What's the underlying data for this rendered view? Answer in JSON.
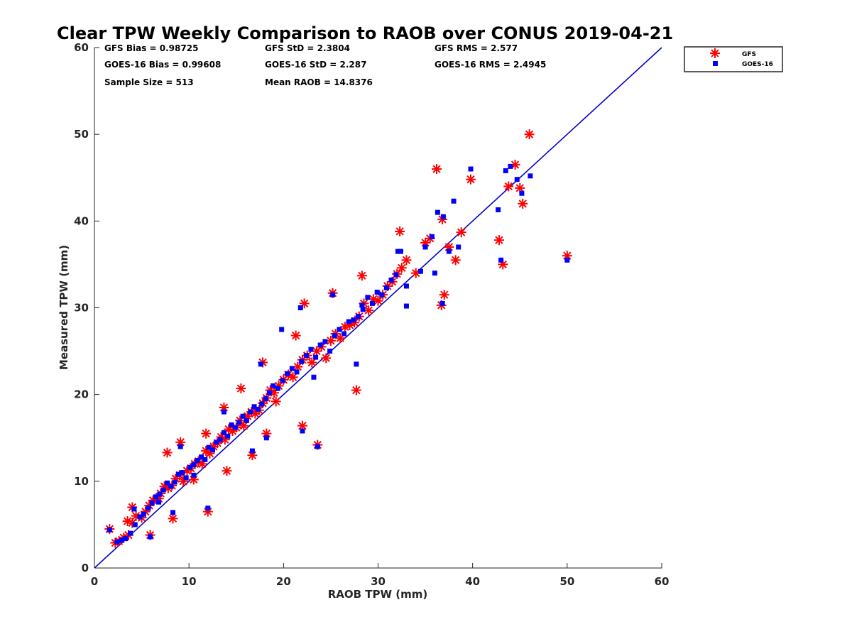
{
  "chart_data": {
    "type": "scatter",
    "title": "Clear TPW Weekly Comparison to RAOB over CONUS 2019-04-21",
    "xlabel": "RAOB TPW (mm)",
    "ylabel": "Measured TPW (mm)",
    "xlim": [
      0,
      60
    ],
    "ylim": [
      0,
      60
    ],
    "xticks": [
      0,
      10,
      20,
      30,
      40,
      50,
      60
    ],
    "yticks": [
      0,
      10,
      20,
      30,
      40,
      50,
      60
    ],
    "grid": false,
    "legend_position": "top-right",
    "one_to_one_line": {
      "x": [
        0,
        60
      ],
      "y": [
        0,
        60
      ],
      "color": "#0000cc"
    },
    "stats": {
      "gfs_bias": "GFS Bias = 0.98725",
      "goes_bias": "GOES-16 Bias = 0.99608",
      "sample_size": "Sample Size = 513",
      "gfs_std": "GFS StD = 2.3804",
      "goes_std": "GOES-16 StD = 2.287",
      "mean_raob": "Mean RAOB = 14.8376",
      "gfs_rms": "GFS RMS = 2.577",
      "goes_rms": "GOES-16 RMS = 2.4945"
    },
    "series": [
      {
        "name": "GFS",
        "color": "#ff0000",
        "marker": "asterisk",
        "x": [
          1.6,
          2.2,
          2.6,
          3.1,
          3.6,
          4.0,
          4.4,
          5.0,
          5.4,
          5.8,
          6.2,
          6.6,
          7.0,
          7.4,
          7.8,
          8.2,
          8.6,
          9.0,
          9.4,
          9.8,
          10.2,
          10.6,
          11.0,
          11.4,
          11.8,
          12.2,
          12.6,
          13.0,
          13.4,
          13.8,
          14.2,
          14.6,
          15.0,
          15.4,
          15.8,
          16.2,
          16.6,
          17.0,
          17.4,
          17.8,
          18.2,
          18.6,
          19.0,
          19.5,
          20.0,
          20.5,
          21.0,
          21.5,
          22.0,
          22.5,
          23.0,
          23.5,
          24.0,
          24.5,
          25.0,
          25.5,
          26.0,
          26.5,
          27.0,
          27.5,
          28.0,
          28.5,
          29.0,
          29.5,
          30.0,
          30.5,
          31.0,
          31.5,
          32.0,
          32.5,
          33.0,
          34.0,
          35.0,
          35.5,
          36.2,
          36.8,
          37.0,
          37.5,
          38.2,
          38.8,
          39.8,
          42.8,
          43.2,
          43.8,
          44.5,
          45.0,
          45.3,
          46.0,
          50.0,
          12.0,
          8.3,
          5.9,
          18.2,
          22.0,
          23.6,
          16.7,
          6.8,
          4.0,
          3.5,
          9.1,
          10.5,
          7.7,
          13.7,
          15.5,
          11.8,
          14.0,
          17.8,
          19.2,
          21.3,
          25.2,
          28.3,
          32.3,
          36.7,
          27.7,
          22.2
        ],
        "y": [
          4.5,
          2.9,
          3.1,
          3.5,
          3.8,
          5.2,
          6.0,
          5.8,
          6.5,
          7.2,
          7.8,
          8.0,
          8.6,
          9.4,
          9.2,
          9.5,
          10.3,
          10.7,
          10.0,
          11.2,
          11.5,
          12.0,
          12.3,
          12.0,
          13.5,
          13.2,
          14.0,
          14.4,
          15.1,
          14.8,
          16.0,
          15.8,
          16.2,
          17.0,
          16.4,
          17.5,
          18.0,
          17.8,
          18.2,
          19.0,
          19.6,
          20.5,
          20.2,
          21.0,
          21.7,
          22.3,
          22.0,
          23.2,
          24.0,
          24.5,
          23.7,
          25.0,
          25.5,
          24.2,
          26.2,
          27.0,
          26.5,
          27.8,
          28.0,
          28.3,
          29.0,
          30.5,
          29.7,
          31.0,
          30.8,
          31.5,
          32.5,
          33.0,
          33.9,
          34.6,
          35.5,
          34.0,
          37.5,
          38.0,
          46.0,
          40.2,
          31.5,
          37.0,
          35.5,
          38.7,
          44.8,
          37.8,
          35.0,
          44.0,
          46.5,
          43.8,
          42.0,
          50.0,
          36.0,
          6.5,
          5.7,
          3.8,
          15.5,
          16.4,
          14.2,
          13.0,
          8.0,
          7.0,
          5.4,
          14.5,
          10.2,
          13.3,
          18.5,
          20.7,
          15.5,
          11.2,
          23.7,
          19.2,
          26.8,
          31.7,
          33.7,
          38.8,
          30.3,
          20.5,
          30.5
        ]
      },
      {
        "name": "GOES-16",
        "color": "#0000ff",
        "marker": "square",
        "x": [
          1.6,
          2.4,
          2.9,
          3.3,
          3.8,
          4.3,
          4.8,
          5.2,
          5.7,
          6.1,
          6.5,
          6.9,
          7.3,
          7.7,
          8.1,
          8.5,
          8.9,
          9.3,
          9.7,
          10.1,
          10.5,
          10.9,
          11.3,
          11.7,
          12.1,
          12.5,
          12.9,
          13.3,
          13.7,
          14.1,
          14.5,
          14.9,
          15.3,
          15.7,
          16.1,
          16.5,
          16.9,
          17.3,
          17.7,
          18.1,
          18.5,
          18.9,
          19.4,
          19.9,
          20.4,
          20.9,
          21.4,
          21.9,
          22.4,
          22.9,
          23.4,
          23.9,
          24.4,
          24.9,
          25.4,
          25.9,
          26.4,
          26.9,
          27.4,
          27.9,
          28.4,
          28.9,
          29.4,
          29.9,
          30.4,
          30.9,
          31.4,
          31.9,
          32.4,
          33.0,
          34.5,
          35.0,
          35.7,
          36.3,
          36.9,
          37.5,
          38.0,
          38.5,
          39.8,
          42.7,
          43.0,
          43.5,
          44.0,
          44.7,
          45.2,
          46.1,
          50.0,
          12.0,
          8.3,
          5.9,
          18.2,
          22.0,
          23.6,
          16.7,
          6.8,
          4.2,
          9.1,
          10.5,
          13.7,
          17.6,
          19.8,
          21.8,
          25.2,
          28.3,
          32.1,
          36.0,
          27.7,
          23.2,
          33.0,
          36.8
        ],
        "y": [
          4.4,
          3.0,
          3.2,
          3.4,
          4.0,
          5.0,
          5.9,
          6.2,
          6.9,
          7.5,
          8.2,
          8.5,
          9.0,
          9.8,
          9.4,
          9.9,
          10.8,
          11.0,
          10.4,
          11.6,
          11.9,
          12.4,
          12.8,
          12.5,
          13.9,
          13.6,
          14.5,
          14.8,
          15.6,
          15.2,
          16.5,
          16.2,
          16.8,
          17.5,
          17.0,
          18.0,
          18.6,
          18.3,
          18.9,
          19.5,
          20.2,
          21.0,
          20.7,
          21.6,
          22.4,
          23.0,
          22.6,
          23.8,
          24.5,
          25.2,
          24.3,
          25.7,
          26.1,
          25.0,
          26.8,
          27.5,
          27.0,
          28.4,
          28.6,
          29.0,
          29.8,
          31.2,
          30.5,
          31.8,
          31.5,
          32.3,
          33.2,
          33.8,
          36.5,
          32.5,
          34.2,
          37.0,
          38.2,
          41.0,
          40.5,
          36.5,
          42.3,
          37.0,
          46.0,
          41.3,
          35.5,
          45.8,
          46.3,
          44.8,
          43.2,
          45.2,
          35.5,
          6.9,
          6.4,
          3.6,
          15.0,
          15.8,
          14.0,
          13.5,
          7.6,
          6.8,
          14.0,
          10.7,
          18.0,
          23.5,
          27.5,
          30.0,
          31.5,
          30.3,
          36.5,
          34.0,
          23.5,
          22.0,
          30.2,
          30.5
        ]
      }
    ]
  },
  "legend": {
    "gfs_label": "GFS",
    "goes_label": "GOES-16"
  }
}
